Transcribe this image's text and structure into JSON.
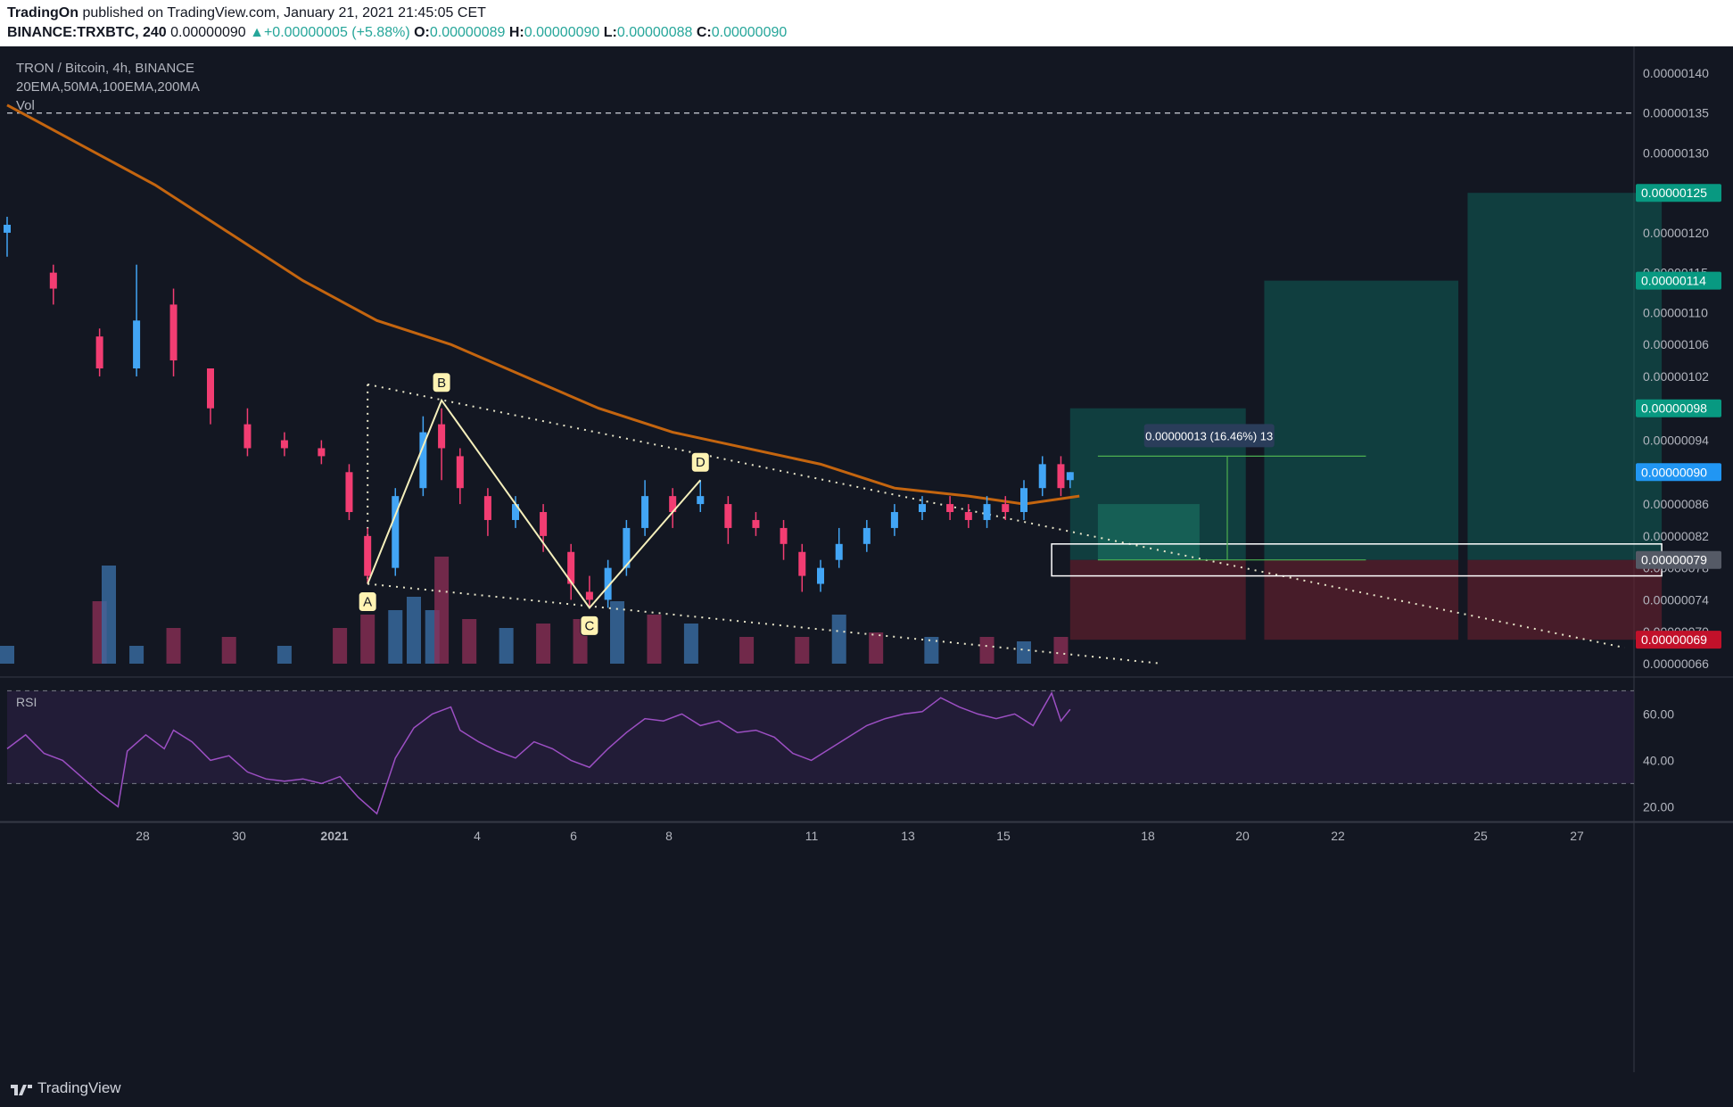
{
  "header": {
    "publisher": "TradingOn",
    "published_text": "published on TradingView.com, January 21, 2021 21:45:05 CET",
    "symbol": "BINANCE:TRXBTC, 240",
    "last_price": "0.00000090",
    "change": "▲+0.00000005 (+5.88%)",
    "o_label": "O:",
    "o": "0.00000089",
    "h_label": "H:",
    "h": "0.00000090",
    "l_label": "L:",
    "l": "0.00000088",
    "c_label": "C:",
    "c": "0.00000090"
  },
  "legend": {
    "title": "TRON / Bitcoin, 4h, BINANCE",
    "indicators": "20EMA,50MA,100EMA,200MA",
    "volume": "Vol"
  },
  "rsi_label": "RSI",
  "footer": {
    "brand": "TradingView"
  },
  "colors": {
    "background": "#131722",
    "bull": "#42a5f5",
    "bear": "#f23d72",
    "ma200": "#c4650f",
    "rsi": "#9c4fc3",
    "profit_zone": "#0e6f63",
    "loss_zone": "#6b1f2e"
  },
  "chart_data": [
    {
      "type": "candlestick",
      "title": "TRON / Bitcoin, 4h, BINANCE",
      "x_ticks": [
        "28",
        "30",
        "2021",
        "4",
        "6",
        "8",
        "11",
        "13",
        "15",
        "18",
        "20",
        "22",
        "25",
        "27"
      ],
      "y_ticks": [
        "0.00000140",
        "0.00000135",
        "0.00000130",
        "0.00000125",
        "0.00000120",
        "0.00000115",
        "0.00000114",
        "0.00000110",
        "0.00000106",
        "0.00000102",
        "0.00000098",
        "0.00000094",
        "0.00000090",
        "0.00000086",
        "0.00000082",
        "0.00000079",
        "0.00000078",
        "0.00000074",
        "0.00000070",
        "0.00000069",
        "0.00000066"
      ],
      "ylim": [
        6.6e-07,
        1.4e-06
      ],
      "price_tags": [
        {
          "value": "0.00000125",
          "color": "#089981"
        },
        {
          "value": "0.00000114",
          "color": "#089981"
        },
        {
          "value": "0.00000098",
          "color": "#089981"
        },
        {
          "value": "0.00000090",
          "color": "#2196f3"
        },
        {
          "value": "0.00000079",
          "color": "#555a66"
        },
        {
          "value": "0.00000069",
          "color": "#c2112a"
        }
      ],
      "price_series": [
        {
          "x": 0,
          "o": 1.2e-06,
          "c": 1.21e-06,
          "h": 1.22e-06,
          "l": 1.17e-06
        },
        {
          "x": 5,
          "o": 1.15e-06,
          "c": 1.13e-06,
          "h": 1.16e-06,
          "l": 1.11e-06
        },
        {
          "x": 10,
          "o": 1.07e-06,
          "c": 1.03e-06,
          "h": 1.08e-06,
          "l": 1.02e-06
        },
        {
          "x": 14,
          "o": 1.03e-06,
          "c": 1.09e-06,
          "h": 1.16e-06,
          "l": 1.02e-06
        },
        {
          "x": 18,
          "o": 1.11e-06,
          "c": 1.04e-06,
          "h": 1.13e-06,
          "l": 1.02e-06
        },
        {
          "x": 22,
          "o": 1.03e-06,
          "c": 9.8e-07,
          "h": 1.03e-06,
          "l": 9.6e-07
        },
        {
          "x": 26,
          "o": 9.6e-07,
          "c": 9.3e-07,
          "h": 9.8e-07,
          "l": 9.2e-07
        },
        {
          "x": 30,
          "o": 9.4e-07,
          "c": 9.3e-07,
          "h": 9.5e-07,
          "l": 9.2e-07
        },
        {
          "x": 34,
          "o": 9.3e-07,
          "c": 9.2e-07,
          "h": 9.4e-07,
          "l": 9.1e-07
        },
        {
          "x": 37,
          "o": 9e-07,
          "c": 8.5e-07,
          "h": 9.1e-07,
          "l": 8.4e-07
        },
        {
          "x": 39,
          "o": 8.2e-07,
          "c": 7.7e-07,
          "h": 8.3e-07,
          "l": 7.6e-07
        },
        {
          "x": 42,
          "o": 7.8e-07,
          "c": 8.7e-07,
          "h": 8.8e-07,
          "l": 7.7e-07
        },
        {
          "x": 45,
          "o": 8.8e-07,
          "c": 9.5e-07,
          "h": 9.7e-07,
          "l": 8.7e-07
        },
        {
          "x": 47,
          "o": 9.6e-07,
          "c": 9.3e-07,
          "h": 9.8e-07,
          "l": 8.9e-07
        },
        {
          "x": 49,
          "o": 9.2e-07,
          "c": 8.8e-07,
          "h": 9.3e-07,
          "l": 8.6e-07
        },
        {
          "x": 52,
          "o": 8.7e-07,
          "c": 8.4e-07,
          "h": 8.8e-07,
          "l": 8.2e-07
        },
        {
          "x": 55,
          "o": 8.4e-07,
          "c": 8.6e-07,
          "h": 8.7e-07,
          "l": 8.3e-07
        },
        {
          "x": 58,
          "o": 8.5e-07,
          "c": 8.2e-07,
          "h": 8.6e-07,
          "l": 8e-07
        },
        {
          "x": 61,
          "o": 8e-07,
          "c": 7.6e-07,
          "h": 8.1e-07,
          "l": 7.4e-07
        },
        {
          "x": 63,
          "o": 7.5e-07,
          "c": 7.4e-07,
          "h": 7.7e-07,
          "l": 7.3e-07
        },
        {
          "x": 65,
          "o": 7.4e-07,
          "c": 7.8e-07,
          "h": 7.9e-07,
          "l": 7.3e-07
        },
        {
          "x": 67,
          "o": 7.8e-07,
          "c": 8.3e-07,
          "h": 8.4e-07,
          "l": 7.7e-07
        },
        {
          "x": 69,
          "o": 8.3e-07,
          "c": 8.7e-07,
          "h": 8.9e-07,
          "l": 8.2e-07
        },
        {
          "x": 72,
          "o": 8.7e-07,
          "c": 8.5e-07,
          "h": 8.8e-07,
          "l": 8.3e-07
        },
        {
          "x": 75,
          "o": 8.6e-07,
          "c": 8.7e-07,
          "h": 8.9e-07,
          "l": 8.5e-07
        },
        {
          "x": 78,
          "o": 8.6e-07,
          "c": 8.3e-07,
          "h": 8.7e-07,
          "l": 8.1e-07
        },
        {
          "x": 81,
          "o": 8.4e-07,
          "c": 8.3e-07,
          "h": 8.5e-07,
          "l": 8.2e-07
        },
        {
          "x": 84,
          "o": 8.3e-07,
          "c": 8.1e-07,
          "h": 8.4e-07,
          "l": 7.9e-07
        },
        {
          "x": 86,
          "o": 8e-07,
          "c": 7.7e-07,
          "h": 8.1e-07,
          "l": 7.5e-07
        },
        {
          "x": 88,
          "o": 7.6e-07,
          "c": 7.8e-07,
          "h": 7.9e-07,
          "l": 7.5e-07
        },
        {
          "x": 90,
          "o": 7.9e-07,
          "c": 8.1e-07,
          "h": 8.3e-07,
          "l": 7.8e-07
        },
        {
          "x": 93,
          "o": 8.1e-07,
          "c": 8.3e-07,
          "h": 8.4e-07,
          "l": 8e-07
        },
        {
          "x": 96,
          "o": 8.3e-07,
          "c": 8.5e-07,
          "h": 8.6e-07,
          "l": 8.2e-07
        },
        {
          "x": 99,
          "o": 8.5e-07,
          "c": 8.6e-07,
          "h": 8.7e-07,
          "l": 8.4e-07
        },
        {
          "x": 102,
          "o": 8.6e-07,
          "c": 8.5e-07,
          "h": 8.7e-07,
          "l": 8.4e-07
        },
        {
          "x": 104,
          "o": 8.5e-07,
          "c": 8.4e-07,
          "h": 8.6e-07,
          "l": 8.3e-07
        },
        {
          "x": 106,
          "o": 8.4e-07,
          "c": 8.6e-07,
          "h": 8.7e-07,
          "l": 8.3e-07
        },
        {
          "x": 108,
          "o": 8.6e-07,
          "c": 8.5e-07,
          "h": 8.7e-07,
          "l": 8.4e-07
        },
        {
          "x": 110,
          "o": 8.5e-07,
          "c": 8.8e-07,
          "h": 8.9e-07,
          "l": 8.4e-07
        },
        {
          "x": 112,
          "o": 8.8e-07,
          "c": 9.1e-07,
          "h": 9.2e-07,
          "l": 8.7e-07
        },
        {
          "x": 114,
          "o": 9.1e-07,
          "c": 8.8e-07,
          "h": 9.2e-07,
          "l": 8.7e-07
        },
        {
          "x": 115,
          "o": 8.9e-07,
          "c": 9e-07,
          "h": 9e-07,
          "l": 8.8e-07
        }
      ],
      "ma200": [
        {
          "x": 0,
          "y": 1.36e-06
        },
        {
          "x": 8,
          "y": 1.31e-06
        },
        {
          "x": 16,
          "y": 1.26e-06
        },
        {
          "x": 24,
          "y": 1.2e-06
        },
        {
          "x": 32,
          "y": 1.14e-06
        },
        {
          "x": 40,
          "y": 1.09e-06
        },
        {
          "x": 48,
          "y": 1.06e-06
        },
        {
          "x": 56,
          "y": 1.02e-06
        },
        {
          "x": 64,
          "y": 9.8e-07
        },
        {
          "x": 72,
          "y": 9.5e-07
        },
        {
          "x": 80,
          "y": 9.3e-07
        },
        {
          "x": 88,
          "y": 9.1e-07
        },
        {
          "x": 96,
          "y": 8.8e-07
        },
        {
          "x": 104,
          "y": 8.7e-07
        },
        {
          "x": 110,
          "y": 8.6e-07
        },
        {
          "x": 116,
          "y": 8.7e-07
        }
      ],
      "pattern_points": [
        {
          "label": "A",
          "x": 39,
          "y": 7.6e-07
        },
        {
          "label": "B",
          "x": 47,
          "y": 9.9e-07
        },
        {
          "label": "C",
          "x": 63,
          "y": 7.3e-07
        },
        {
          "label": "D",
          "x": 75,
          "y": 8.9e-07
        }
      ],
      "measure_label": "0.00000013 (16.46%) 13",
      "volume": [
        {
          "x": 0,
          "v": 20,
          "up": true
        },
        {
          "x": 10,
          "v": 70,
          "up": false
        },
        {
          "x": 11,
          "v": 110,
          "up": true
        },
        {
          "x": 14,
          "v": 20,
          "up": true
        },
        {
          "x": 18,
          "v": 40,
          "up": false
        },
        {
          "x": 24,
          "v": 30,
          "up": false
        },
        {
          "x": 30,
          "v": 20,
          "up": true
        },
        {
          "x": 36,
          "v": 40,
          "up": false
        },
        {
          "x": 39,
          "v": 55,
          "up": false
        },
        {
          "x": 42,
          "v": 60,
          "up": true
        },
        {
          "x": 44,
          "v": 75,
          "up": true
        },
        {
          "x": 46,
          "v": 60,
          "up": true
        },
        {
          "x": 47,
          "v": 120,
          "up": false
        },
        {
          "x": 50,
          "v": 50,
          "up": false
        },
        {
          "x": 54,
          "v": 40,
          "up": true
        },
        {
          "x": 58,
          "v": 45,
          "up": false
        },
        {
          "x": 62,
          "v": 50,
          "up": false
        },
        {
          "x": 66,
          "v": 70,
          "up": true
        },
        {
          "x": 70,
          "v": 55,
          "up": false
        },
        {
          "x": 74,
          "v": 45,
          "up": true
        },
        {
          "x": 80,
          "v": 30,
          "up": false
        },
        {
          "x": 86,
          "v": 30,
          "up": false
        },
        {
          "x": 90,
          "v": 55,
          "up": true
        },
        {
          "x": 94,
          "v": 35,
          "up": false
        },
        {
          "x": 100,
          "v": 30,
          "up": true
        },
        {
          "x": 106,
          "v": 30,
          "up": false
        },
        {
          "x": 110,
          "v": 25,
          "up": true
        },
        {
          "x": 114,
          "v": 30,
          "up": false
        }
      ]
    },
    {
      "type": "line",
      "title": "RSI",
      "y_ticks": [
        "60.00",
        "40.00",
        "20.00"
      ],
      "ylim": [
        14,
        74
      ],
      "levels": [
        70,
        30
      ],
      "series": [
        {
          "values": [
            {
              "x": 0,
              "y": 45
            },
            {
              "x": 2,
              "y": 51
            },
            {
              "x": 4,
              "y": 43
            },
            {
              "x": 6,
              "y": 40
            },
            {
              "x": 8,
              "y": 33
            },
            {
              "x": 10,
              "y": 26
            },
            {
              "x": 12,
              "y": 20
            },
            {
              "x": 13,
              "y": 44
            },
            {
              "x": 15,
              "y": 51
            },
            {
              "x": 17,
              "y": 45
            },
            {
              "x": 18,
              "y": 53
            },
            {
              "x": 20,
              "y": 48
            },
            {
              "x": 22,
              "y": 40
            },
            {
              "x": 24,
              "y": 42
            },
            {
              "x": 26,
              "y": 35
            },
            {
              "x": 28,
              "y": 32
            },
            {
              "x": 30,
              "y": 31
            },
            {
              "x": 32,
              "y": 32
            },
            {
              "x": 34,
              "y": 30
            },
            {
              "x": 36,
              "y": 33
            },
            {
              "x": 38,
              "y": 24
            },
            {
              "x": 40,
              "y": 17
            },
            {
              "x": 42,
              "y": 41
            },
            {
              "x": 44,
              "y": 54
            },
            {
              "x": 46,
              "y": 60
            },
            {
              "x": 48,
              "y": 63
            },
            {
              "x": 49,
              "y": 53
            },
            {
              "x": 51,
              "y": 48
            },
            {
              "x": 53,
              "y": 44
            },
            {
              "x": 55,
              "y": 41
            },
            {
              "x": 57,
              "y": 48
            },
            {
              "x": 59,
              "y": 45
            },
            {
              "x": 61,
              "y": 40
            },
            {
              "x": 63,
              "y": 37
            },
            {
              "x": 65,
              "y": 45
            },
            {
              "x": 67,
              "y": 52
            },
            {
              "x": 69,
              "y": 58
            },
            {
              "x": 71,
              "y": 57
            },
            {
              "x": 73,
              "y": 60
            },
            {
              "x": 75,
              "y": 55
            },
            {
              "x": 77,
              "y": 57
            },
            {
              "x": 79,
              "y": 52
            },
            {
              "x": 81,
              "y": 53
            },
            {
              "x": 83,
              "y": 50
            },
            {
              "x": 85,
              "y": 43
            },
            {
              "x": 87,
              "y": 40
            },
            {
              "x": 89,
              "y": 45
            },
            {
              "x": 91,
              "y": 50
            },
            {
              "x": 93,
              "y": 55
            },
            {
              "x": 95,
              "y": 58
            },
            {
              "x": 97,
              "y": 60
            },
            {
              "x": 99,
              "y": 61
            },
            {
              "x": 101,
              "y": 67
            },
            {
              "x": 103,
              "y": 63
            },
            {
              "x": 105,
              "y": 60
            },
            {
              "x": 107,
              "y": 58
            },
            {
              "x": 109,
              "y": 60
            },
            {
              "x": 111,
              "y": 55
            },
            {
              "x": 113,
              "y": 69
            },
            {
              "x": 114,
              "y": 57
            },
            {
              "x": 115,
              "y": 62
            }
          ]
        }
      ]
    }
  ]
}
